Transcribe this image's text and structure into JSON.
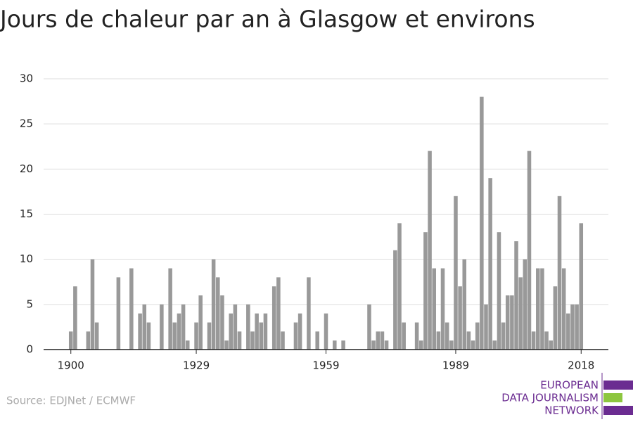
{
  "chart_data": {
    "type": "bar",
    "title": "Jours de chaleur par an à Glasgow et environs",
    "source": "Source: EDJNet / ECMWF",
    "logo": [
      "EUROPEAN",
      "DATA JOURNALISM",
      "NETWORK"
    ],
    "color": "#999999",
    "x": [
      1900,
      1901,
      1902,
      1903,
      1904,
      1905,
      1906,
      1907,
      1908,
      1909,
      1910,
      1911,
      1912,
      1913,
      1914,
      1915,
      1916,
      1917,
      1918,
      1919,
      1920,
      1921,
      1922,
      1923,
      1924,
      1925,
      1926,
      1927,
      1928,
      1929,
      1930,
      1931,
      1932,
      1933,
      1934,
      1935,
      1936,
      1937,
      1938,
      1939,
      1940,
      1941,
      1942,
      1943,
      1944,
      1945,
      1946,
      1947,
      1948,
      1949,
      1950,
      1951,
      1952,
      1953,
      1954,
      1955,
      1956,
      1957,
      1958,
      1959,
      1960,
      1961,
      1962,
      1963,
      1964,
      1965,
      1966,
      1967,
      1968,
      1969,
      1970,
      1971,
      1972,
      1973,
      1974,
      1975,
      1976,
      1977,
      1978,
      1979,
      1980,
      1981,
      1982,
      1983,
      1984,
      1985,
      1986,
      1987,
      1988,
      1989,
      1990,
      1991,
      1992,
      1993,
      1994,
      1995,
      1996,
      1997,
      1998,
      1999,
      2000,
      2001,
      2002,
      2003,
      2004,
      2005,
      2006,
      2007,
      2008,
      2009,
      2010,
      2011,
      2012,
      2013,
      2014,
      2015,
      2016,
      2017,
      2018
    ],
    "values": [
      2,
      7,
      0,
      0,
      2,
      10,
      3,
      0,
      0,
      0,
      0,
      8,
      0,
      0,
      9,
      0,
      4,
      5,
      3,
      0,
      0,
      5,
      0,
      9,
      3,
      4,
      5,
      1,
      0,
      3,
      6,
      0,
      3,
      10,
      8,
      6,
      1,
      4,
      5,
      2,
      0,
      5,
      2,
      4,
      3,
      4,
      0,
      7,
      8,
      2,
      0,
      0,
      3,
      4,
      0,
      8,
      0,
      2,
      0,
      4,
      0,
      1,
      0,
      1,
      0,
      0,
      0,
      0,
      0,
      5,
      1,
      2,
      2,
      1,
      0,
      11,
      14,
      3,
      0,
      0,
      3,
      1,
      13,
      22,
      9,
      2,
      9,
      3,
      1,
      17,
      7,
      10,
      2,
      1,
      3,
      28,
      5,
      19,
      1,
      13,
      3,
      6,
      6,
      12,
      8,
      10,
      22,
      2,
      9,
      9,
      2,
      1,
      7,
      17,
      9,
      4,
      5,
      5,
      14
    ],
    "xlim": [
      1893.7,
      2024.3
    ],
    "xticks": [
      1900,
      1929,
      1959,
      1989,
      2018
    ],
    "ylim": [
      0,
      30
    ],
    "yticks": [
      0,
      5,
      10,
      15,
      20,
      25,
      30
    ],
    "grid": true
  }
}
